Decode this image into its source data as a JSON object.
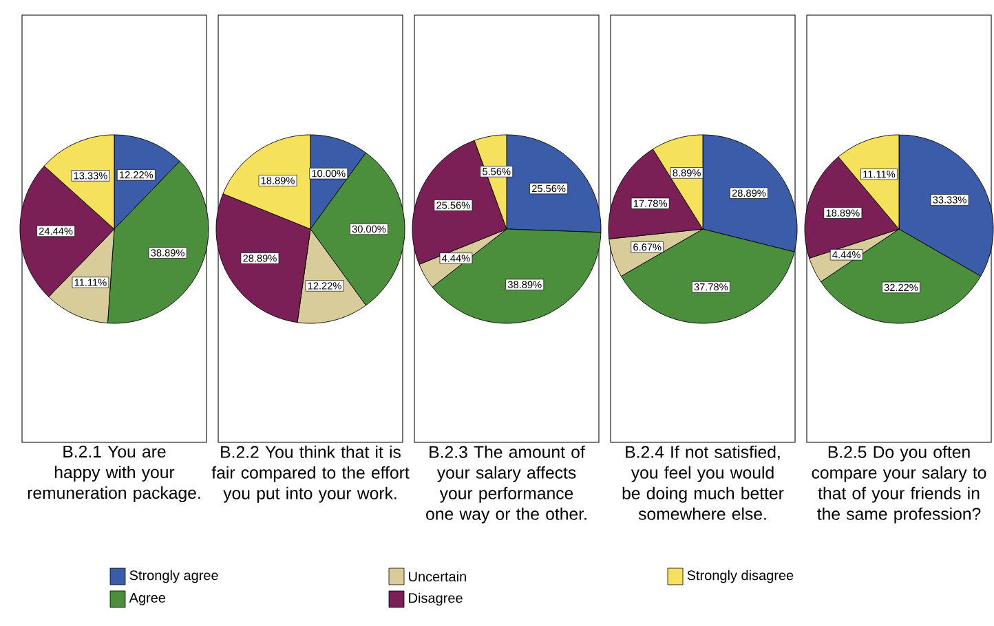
{
  "chart_data": [
    {
      "type": "pie",
      "title": "B.2.1 You are happy with your remuneration package.",
      "categories": [
        "Strongly agree",
        "Agree",
        "Uncertain",
        "Disagree",
        "Strongly disagree"
      ],
      "values": [
        12.22,
        38.89,
        11.11,
        24.44,
        13.33
      ],
      "value_labels": [
        "12.22%",
        "38.89%",
        "11.11%",
        "24.44%",
        "13.33%"
      ],
      "colors": [
        "#3b5ca8",
        "#4b8f3d",
        "#d9cc9b",
        "#7b1f57",
        "#f5e15b"
      ],
      "legend": "bottom"
    },
    {
      "type": "pie",
      "title": "B.2.2 You think that it is fair compared to the effort you put into your work.",
      "categories": [
        null,
        null,
        null,
        null,
        null
      ],
      "values": [
        10.0,
        30.0,
        12.22,
        28.89,
        18.89
      ],
      "value_labels": [
        "10.00%",
        "30.00%",
        "12.22%",
        "28.89%",
        "18.89%"
      ],
      "colors": [
        "#3b5ca8",
        "#4b8f3d",
        "#d9cc9b",
        "#7b1f57",
        "#f5e15b"
      ]
    },
    {
      "type": "pie",
      "title": "B.2.3 The amount of your salary affects your performance one way or the other.",
      "categories": [
        null,
        null,
        null,
        null,
        null
      ],
      "values": [
        25.56,
        38.89,
        4.44,
        25.56,
        5.56
      ],
      "value_labels": [
        "25.56%",
        "38.89%",
        "4.44%",
        "25.56%",
        "5.56%"
      ],
      "colors": [
        "#3b5ca8",
        "#4b8f3d",
        "#d9cc9b",
        "#7b1f57",
        "#f5e15b"
      ]
    },
    {
      "type": "pie",
      "title": "B.2.4 If not satisfied, you feel you would be doing much better somewhere else.",
      "categories": [
        null,
        null,
        null,
        null,
        null
      ],
      "values": [
        28.89,
        37.78,
        6.67,
        17.78,
        8.89
      ],
      "value_labels": [
        "28.89%",
        "37.78%",
        "6.67%",
        "17.78%",
        "8.89%"
      ],
      "colors": [
        "#3b5ca8",
        "#4b8f3d",
        "#d9cc9b",
        "#7b1f57",
        "#f5e15b"
      ]
    },
    {
      "type": "pie",
      "title": "B.2.5 Do you often compare your salary to that of your friends in the same profession?",
      "categories": [
        null,
        null,
        null,
        null,
        null
      ],
      "values": [
        33.33,
        32.22,
        4.44,
        18.89,
        11.11
      ],
      "value_labels": [
        "33.33%",
        "32.22%",
        "4.44%",
        "18.89%",
        "11.11%"
      ],
      "colors": [
        "#3b5ca8",
        "#4b8f3d",
        "#d9cc9b",
        "#7b1f57",
        "#f5e15b"
      ]
    }
  ]
}
